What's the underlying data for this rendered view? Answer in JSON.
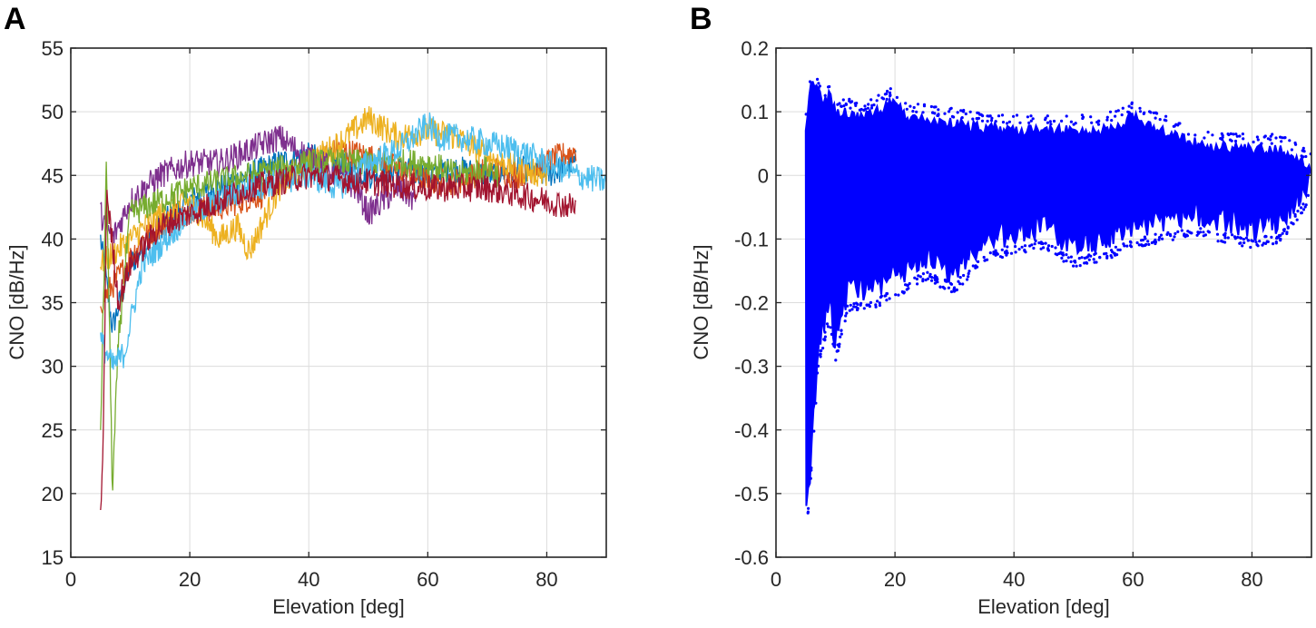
{
  "chart_data": [
    {
      "panel_label": "A",
      "type": "line",
      "xlabel": "Elevation [deg]",
      "ylabel": "CNO [dB/Hz]",
      "xlim": [
        0,
        90
      ],
      "ylim": [
        15,
        55
      ],
      "xticks": [
        0,
        20,
        40,
        60,
        80
      ],
      "yticks": [
        15,
        20,
        25,
        30,
        35,
        40,
        45,
        50,
        55
      ],
      "grid": true,
      "series": [
        {
          "color": "#0072BD",
          "x": [
            5,
            7,
            10,
            15,
            20,
            25,
            30,
            35,
            40,
            45,
            50,
            55,
            60,
            65,
            70,
            75,
            80,
            85
          ],
          "y": [
            40,
            33,
            38,
            41,
            43,
            44,
            45,
            46,
            46.5,
            46,
            45,
            45.5,
            45,
            45.5,
            45,
            45.5,
            45,
            46
          ]
        },
        {
          "color": "#D95319",
          "x": [
            5,
            8,
            12,
            18,
            25,
            32,
            40,
            45,
            50,
            55,
            60,
            65,
            70,
            75,
            80,
            85
          ],
          "y": [
            35,
            37,
            40,
            42,
            42.5,
            43.5,
            46,
            47,
            46.5,
            45.5,
            44.5,
            44.5,
            45.5,
            45,
            46,
            47
          ]
        },
        {
          "color": "#EDB120",
          "x": [
            5,
            10,
            15,
            20,
            25,
            28,
            30,
            35,
            40,
            45,
            50,
            55,
            60,
            65,
            70,
            75,
            80
          ],
          "y": [
            38,
            40,
            42,
            43,
            40,
            41,
            39,
            44,
            46,
            47.5,
            49.5,
            48,
            48.5,
            48,
            46.5,
            45.5,
            45
          ]
        },
        {
          "color": "#7E2F8E",
          "x": [
            5,
            7,
            10,
            15,
            20,
            25,
            30,
            35,
            38,
            42,
            45,
            48,
            50,
            55,
            58
          ],
          "y": [
            42,
            40,
            43,
            45,
            46,
            46,
            47,
            48,
            47,
            46,
            45,
            44,
            42,
            44,
            43
          ]
        },
        {
          "color": "#77AC30",
          "x": [
            5,
            6,
            7,
            8,
            10,
            20,
            40,
            60,
            65,
            70,
            72
          ],
          "y": [
            25,
            46,
            20,
            32,
            42,
            44,
            46,
            46,
            45,
            45.5,
            45
          ]
        },
        {
          "color": "#4DBEEE",
          "x": [
            5,
            7,
            9,
            12,
            20,
            30,
            40,
            45,
            50,
            55,
            60,
            62,
            65,
            70,
            75,
            80,
            85,
            90
          ],
          "y": [
            32,
            30,
            31,
            38,
            42,
            44,
            45,
            44,
            46,
            47,
            49,
            48,
            48,
            47.5,
            47,
            46,
            45,
            44.5
          ]
        },
        {
          "color": "#A2142F",
          "x": [
            5,
            5.5,
            6,
            8,
            10,
            15,
            20,
            30,
            40,
            50,
            60,
            70,
            75,
            80,
            85
          ],
          "y": [
            18,
            25,
            44,
            35,
            38,
            41,
            42,
            44,
            45,
            44.5,
            44,
            44,
            43.5,
            43,
            42.5
          ]
        }
      ]
    },
    {
      "panel_label": "B",
      "type": "scatter",
      "xlabel": "Elevation [deg]",
      "ylabel": "CNO [dB/Hz]",
      "xlim": [
        0,
        90
      ],
      "ylim": [
        -0.6,
        0.2
      ],
      "xticks": [
        0,
        20,
        40,
        60,
        80
      ],
      "yticks": [
        -0.6,
        -0.5,
        -0.4,
        -0.3,
        -0.2,
        -0.1,
        0,
        0.1,
        0.2
      ],
      "grid": true,
      "color": "#0000FF",
      "envelope": {
        "upper_x": [
          5,
          6,
          7,
          8,
          9,
          10,
          15,
          20,
          22,
          30,
          40,
          50,
          55,
          60,
          65,
          70,
          80,
          85,
          90
        ],
        "upper_y": [
          0.08,
          0.17,
          0.14,
          0.12,
          0.14,
          0.11,
          0.1,
          0.125,
          0.1,
          0.09,
          0.08,
          0.08,
          0.08,
          0.1,
          0.08,
          0.06,
          0.05,
          0.05,
          0.02
        ],
        "lower_x": [
          5,
          6,
          7,
          8,
          9,
          10,
          12,
          15,
          20,
          25,
          30,
          35,
          40,
          45,
          50,
          55,
          60,
          70,
          80,
          85,
          88,
          90
        ],
        "lower_y": [
          -0.57,
          -0.45,
          -0.3,
          -0.25,
          -0.22,
          -0.28,
          -0.2,
          -0.2,
          -0.18,
          -0.15,
          -0.17,
          -0.12,
          -0.11,
          -0.1,
          -0.13,
          -0.12,
          -0.1,
          -0.08,
          -0.1,
          -0.09,
          -0.05,
          -0.02
        ]
      }
    }
  ]
}
